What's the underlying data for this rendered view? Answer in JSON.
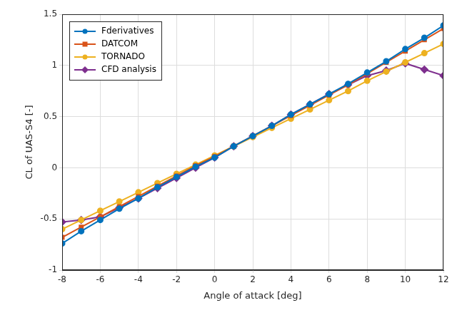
{
  "chart_data": {
    "type": "line",
    "x_label": "Angle of attack [deg]",
    "y_label": "CL of UAS-S4 [-]",
    "x": [
      -8,
      -7,
      -6,
      -5,
      -4,
      -3,
      -2,
      -1,
      0,
      1,
      2,
      3,
      4,
      5,
      6,
      7,
      8,
      9,
      10,
      11,
      12
    ],
    "series": [
      {
        "name": "Fderivatives",
        "color": "#0072bd",
        "marker": "circle",
        "line_style": "solid",
        "values": [
          -0.74,
          -0.62,
          -0.51,
          -0.4,
          -0.3,
          -0.19,
          -0.09,
          0.01,
          0.1,
          0.21,
          0.31,
          0.41,
          0.52,
          0.62,
          0.72,
          0.82,
          0.93,
          1.04,
          1.16,
          1.27,
          1.39
        ]
      },
      {
        "name": "DATCOM",
        "color": "#d95319",
        "marker": "square",
        "line_style": "solid",
        "values": [
          -0.68,
          -0.58,
          -0.48,
          -0.38,
          -0.28,
          -0.18,
          -0.08,
          0.02,
          0.11,
          0.21,
          0.31,
          0.41,
          0.51,
          0.61,
          0.71,
          0.81,
          0.92,
          1.03,
          1.14,
          1.25,
          1.36
        ]
      },
      {
        "name": "TORNADO",
        "color": "#edb120",
        "marker": "circle",
        "line_style": "solid",
        "values": [
          -0.6,
          -0.51,
          -0.42,
          -0.33,
          -0.24,
          -0.15,
          -0.06,
          0.03,
          0.12,
          0.21,
          0.3,
          0.39,
          0.48,
          0.57,
          0.66,
          0.75,
          0.85,
          0.94,
          1.03,
          1.12,
          1.21
        ]
      },
      {
        "name": "CFD analysis",
        "color": "#7e2f8e",
        "marker": "diamond",
        "line_style": "solid",
        "values": [
          -0.53,
          -0.51,
          -0.48,
          -0.39,
          -0.3,
          -0.2,
          -0.1,
          0.0,
          0.1,
          0.21,
          0.31,
          0.41,
          0.52,
          0.62,
          0.72,
          0.81,
          0.9,
          0.95,
          1.02,
          0.96,
          0.9
        ]
      }
    ],
    "xlim": [
      -8,
      12
    ],
    "xticks": [
      -8,
      -6,
      -4,
      -2,
      0,
      2,
      4,
      6,
      8,
      10,
      12
    ],
    "ylim": [
      -1,
      1.5
    ],
    "yticks": [
      -1,
      -0.5,
      0,
      0.5,
      1,
      1.5
    ],
    "grid": true,
    "legend": "top-left"
  }
}
